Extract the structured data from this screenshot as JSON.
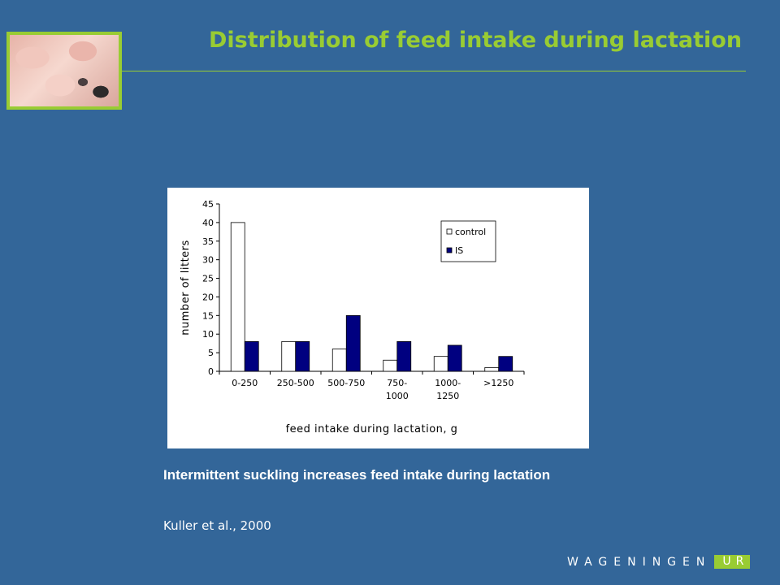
{
  "slide": {
    "title": "Distribution of feed intake during lactation",
    "caption": "Intermittent suckling increases feed intake during lactation",
    "reference": "Kuller et al., 2000"
  },
  "logo": {
    "word": "WAGENINGEN",
    "suffix": "UR"
  },
  "colors": {
    "background": "#336699",
    "accent": "#99cc33",
    "control": "#ffffff",
    "is": "#000080"
  },
  "chart_data": {
    "type": "bar",
    "categories": [
      [
        "0-250"
      ],
      [
        "250-500"
      ],
      [
        "500-750"
      ],
      [
        "750-",
        "1000"
      ],
      [
        "1000-",
        "1250"
      ],
      [
        ">1250"
      ]
    ],
    "series": [
      {
        "name": "control",
        "values": [
          40,
          8,
          6,
          3,
          4,
          1
        ]
      },
      {
        "name": "IS",
        "values": [
          8,
          8,
          15,
          8,
          7,
          4
        ]
      }
    ],
    "xlabel": "feed intake during lactation, g",
    "ylabel": "number of litters",
    "ylim": [
      0,
      45
    ],
    "yticks": [
      0,
      5,
      10,
      15,
      20,
      25,
      30,
      35,
      40,
      45
    ],
    "grid": false,
    "legend": "top-right"
  }
}
